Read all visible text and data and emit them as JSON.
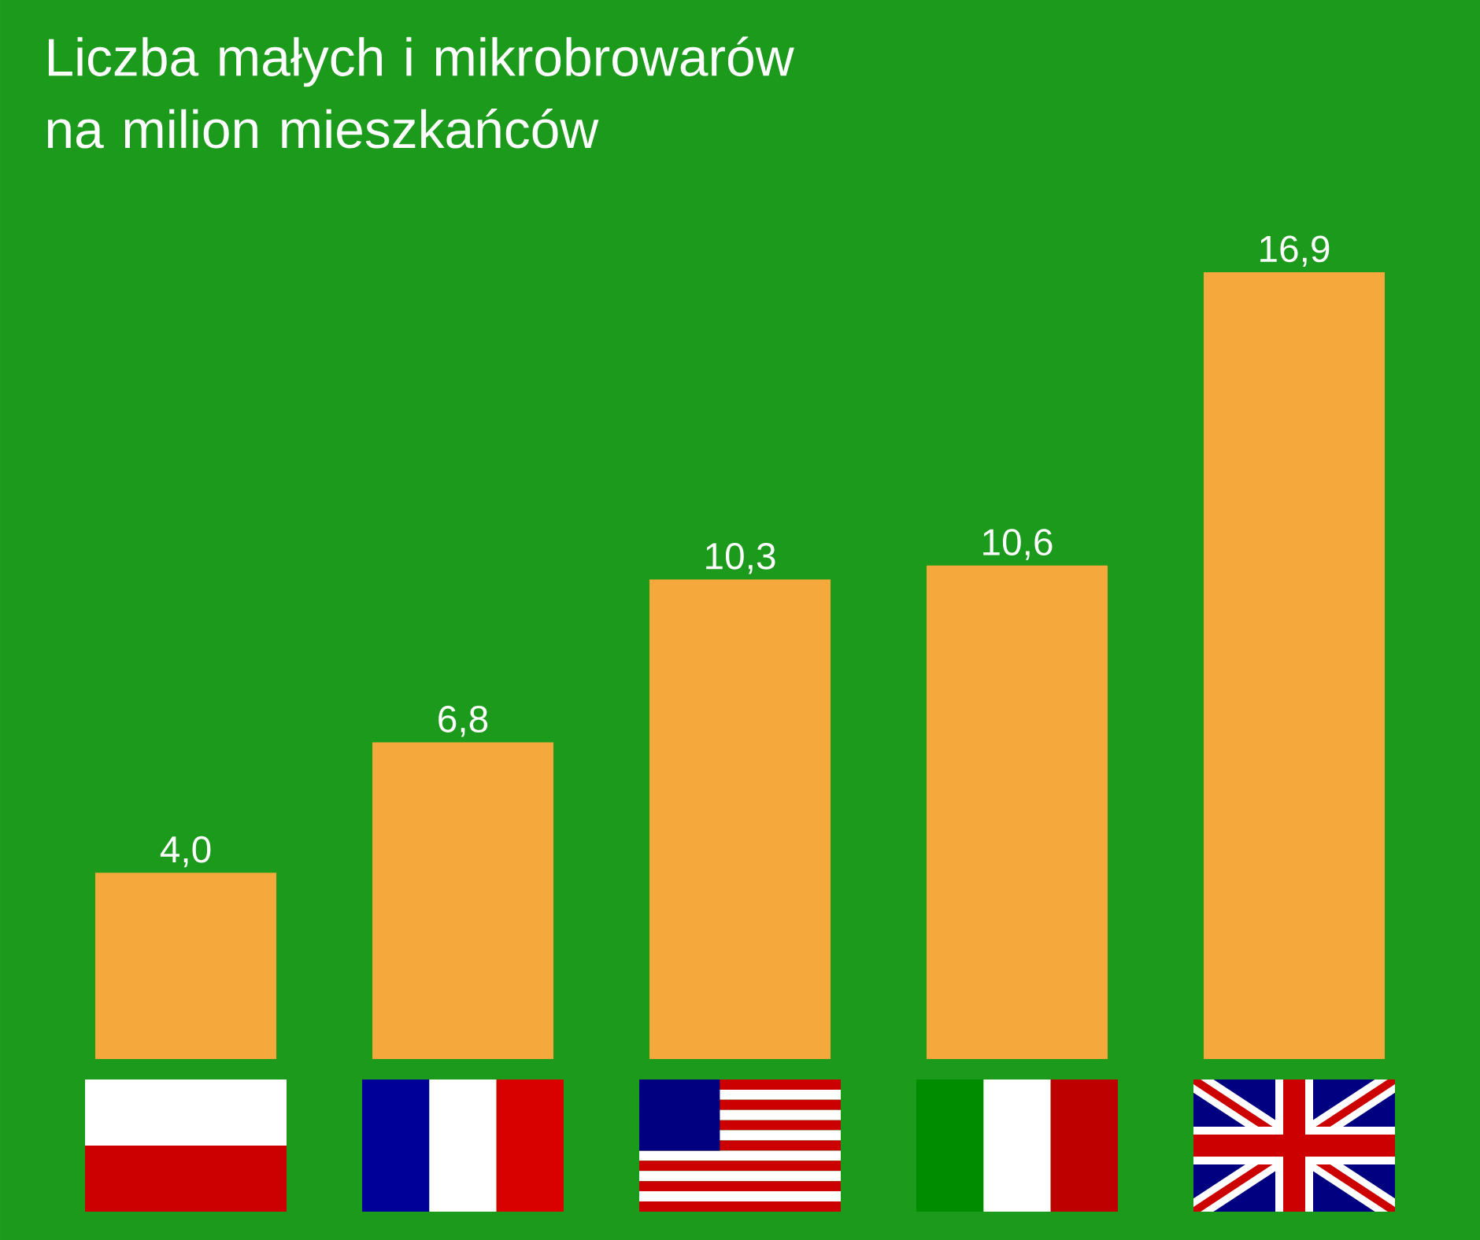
{
  "chart_data": {
    "type": "bar",
    "title": "Liczba małych i mikrobrowarów na milion mieszkańców",
    "categories": [
      null,
      null,
      null,
      null,
      null
    ],
    "values": [
      4.0,
      6.8,
      10.3,
      10.6,
      16.9
    ],
    "value_labels": [
      "4,0",
      "6,8",
      "10,3",
      "10,6",
      "16,9"
    ],
    "color": "#f5a93c"
  }
}
